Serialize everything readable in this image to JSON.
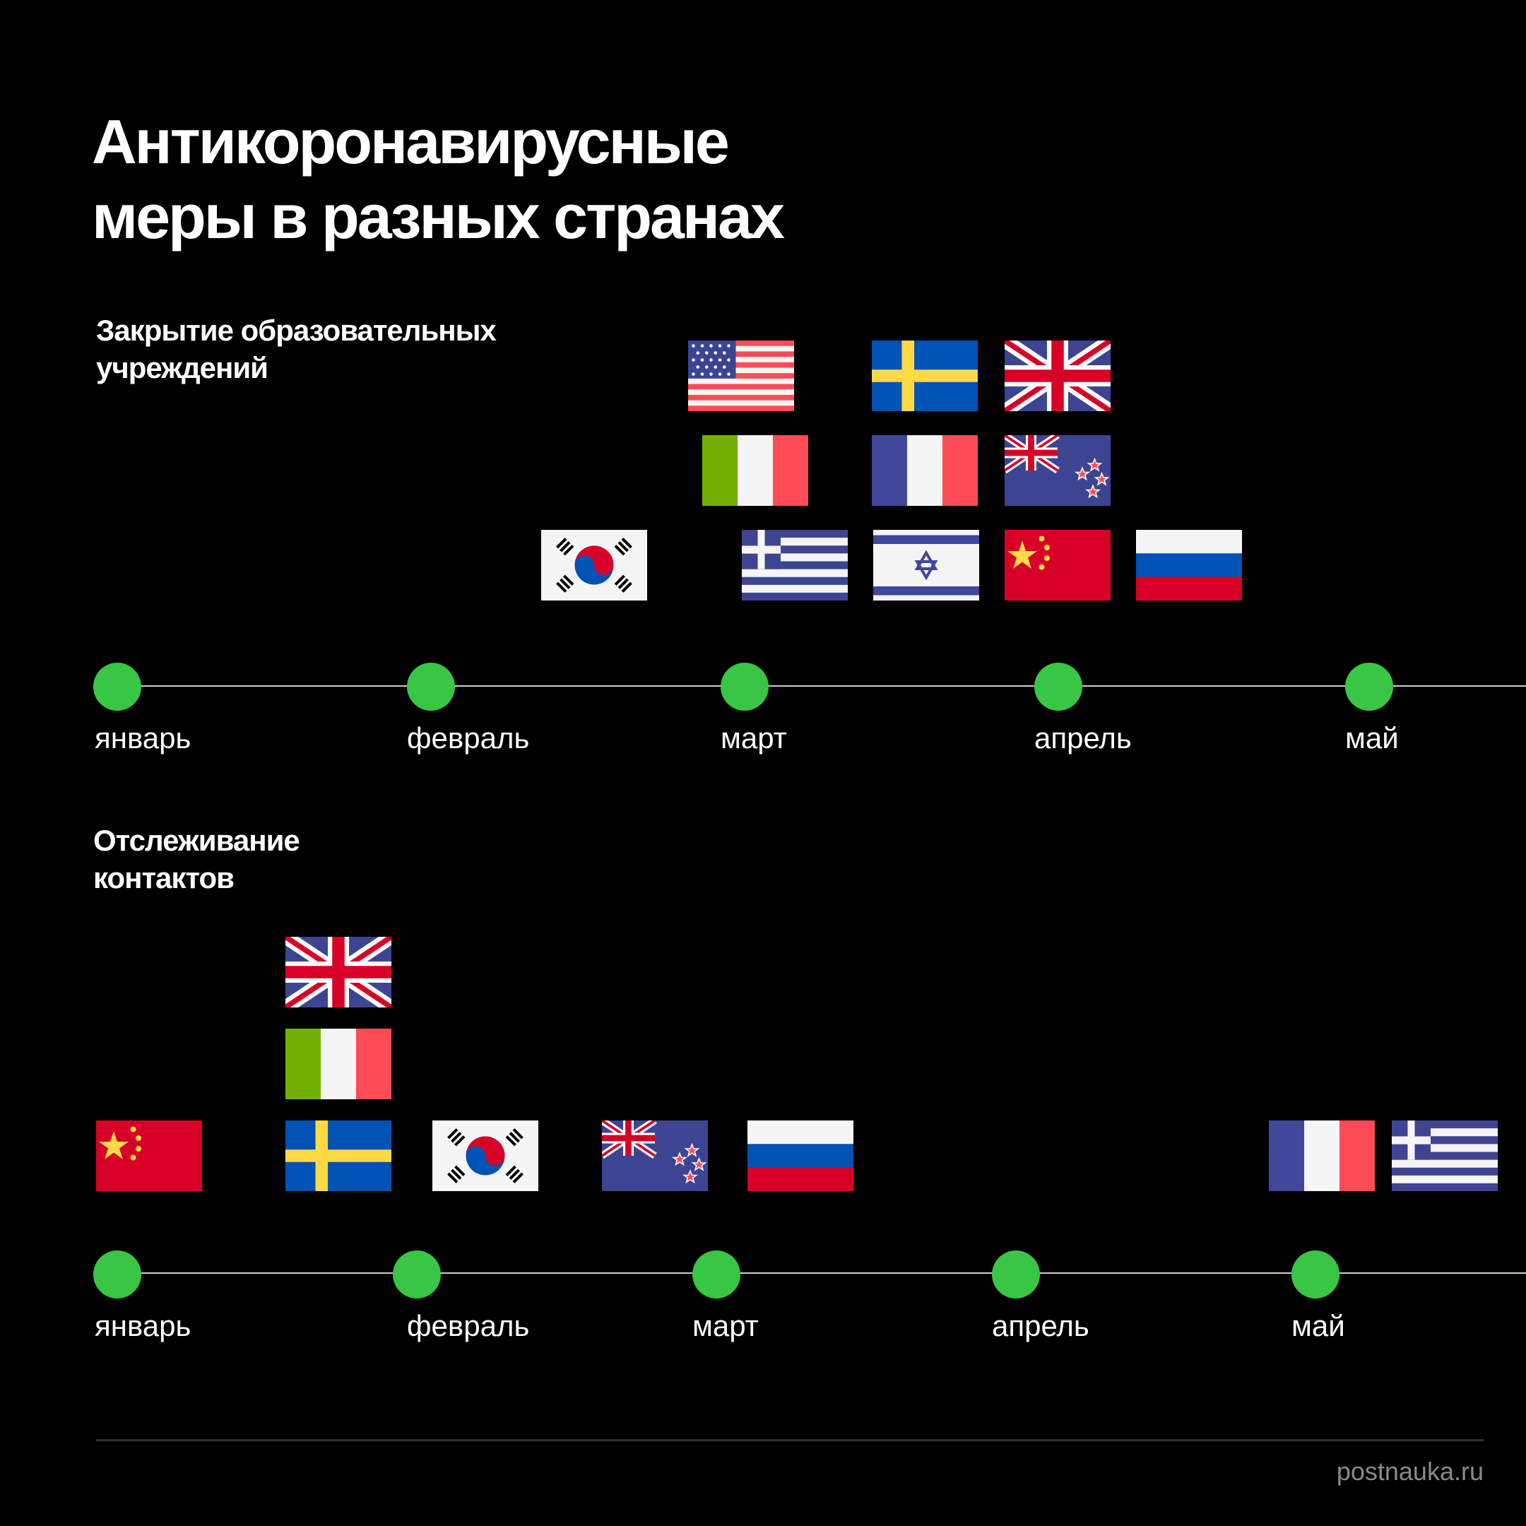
{
  "title": {
    "line1": "Антикоронавирусные",
    "line2": "меры в разных странах"
  },
  "sections": [
    {
      "label_line1": "Закрытие образовательных",
      "label_line2": "учреждений",
      "months": [
        "январь",
        "февраль",
        "март",
        "апрель",
        "май"
      ],
      "flags": [
        "usa",
        "sweden",
        "uk",
        "italy",
        "france",
        "new-zealand",
        "south-korea",
        "greece",
        "israel",
        "china",
        "russia"
      ]
    },
    {
      "label_line1": "Отслеживание",
      "label_line2": "контактов",
      "months": [
        "январь",
        "февраль",
        "март",
        "апрель",
        "май"
      ],
      "flags": [
        "uk",
        "italy",
        "china",
        "sweden",
        "south-korea",
        "new-zealand",
        "russia",
        "france",
        "greece"
      ]
    }
  ],
  "colors": {
    "background": "#000000",
    "dot": "#38c644",
    "line": "#cfcfcf"
  },
  "source": "postnauka.ru"
}
